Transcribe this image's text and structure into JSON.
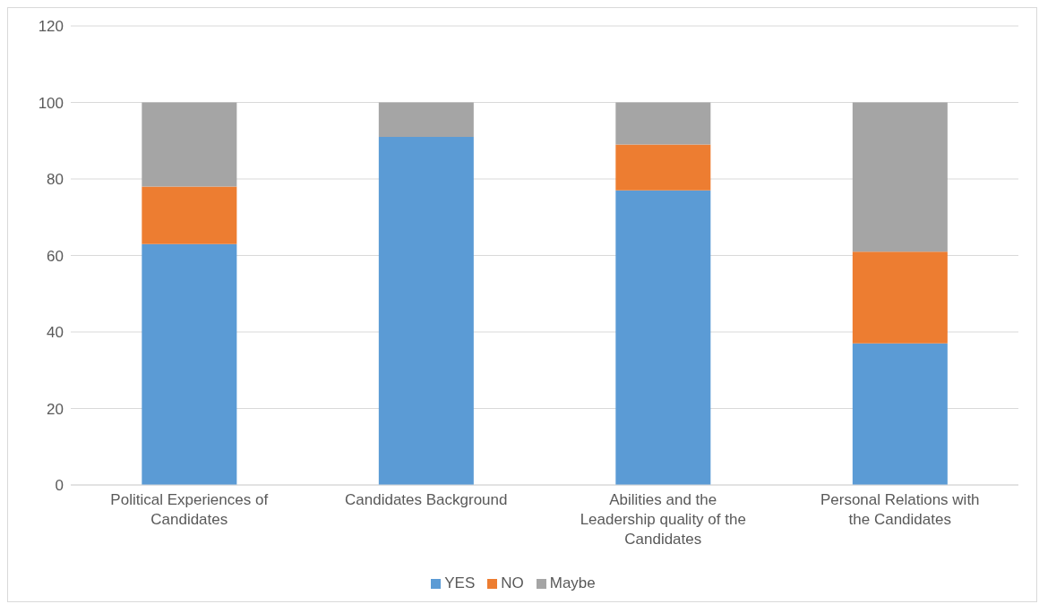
{
  "chart_data": {
    "type": "bar",
    "stacked": true,
    "categories": [
      "Political Experiences of Candidates",
      "Candidates Background",
      "Abilities and the Leadership quality of the Candidates",
      "Personal Relations with the Candidates"
    ],
    "series": [
      {
        "name": "YES",
        "color": "#5b9bd5",
        "values": [
          63,
          91,
          77,
          37
        ]
      },
      {
        "name": "NO",
        "color": "#ed7d31",
        "values": [
          15,
          0,
          12,
          24
        ]
      },
      {
        "name": "Maybe",
        "color": "#a5a5a5",
        "values": [
          22,
          9,
          11,
          39
        ]
      }
    ],
    "ylim": [
      0,
      120
    ],
    "yticks": [
      0,
      20,
      40,
      60,
      80,
      100,
      120
    ],
    "grid": "y",
    "legend": "bottom"
  }
}
